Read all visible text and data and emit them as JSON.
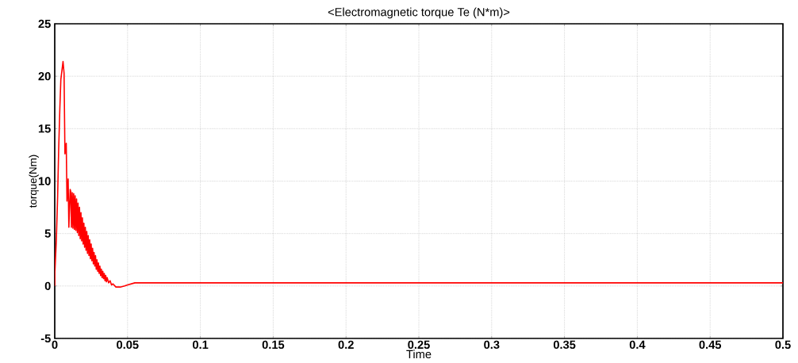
{
  "chart_data": {
    "type": "line",
    "title": "<Electromagnetic torque Te (N*m)>",
    "xlabel": "Time",
    "ylabel": "torque(Nm)",
    "xlim": [
      0,
      0.5
    ],
    "ylim": [
      -5,
      25
    ],
    "xticks": [
      0,
      0.05,
      0.1,
      0.15,
      0.2,
      0.25,
      0.3,
      0.35,
      0.4,
      0.45,
      0.5
    ],
    "yticks": [
      -5,
      0,
      5,
      10,
      15,
      20,
      25
    ],
    "grid": true,
    "line_style": "solid",
    "series": [
      {
        "color": "#ff0000",
        "x": [
          0,
          0.0001,
          0.0011,
          0.002,
          0.0027,
          0.0035,
          0.0042,
          0.0057,
          0.0064,
          0.007,
          0.0079,
          0.0084,
          0.0092,
          0.0097,
          0.0106,
          0.011,
          0.0115,
          0.012,
          0.0125,
          0.013,
          0.0135,
          0.014,
          0.0145,
          0.015,
          0.0155,
          0.016,
          0.0165,
          0.017,
          0.0175,
          0.018,
          0.0185,
          0.019,
          0.0195,
          0.02,
          0.0205,
          0.021,
          0.0215,
          0.022,
          0.0225,
          0.023,
          0.0235,
          0.024,
          0.0245,
          0.025,
          0.0255,
          0.026,
          0.0265,
          0.027,
          0.0275,
          0.028,
          0.0285,
          0.029,
          0.0295,
          0.03,
          0.0305,
          0.031,
          0.0315,
          0.032,
          0.0325,
          0.033,
          0.0335,
          0.034,
          0.0345,
          0.035,
          0.0355,
          0.036,
          0.037,
          0.038,
          0.039,
          0.04,
          0.042,
          0.045,
          0.048,
          0.05,
          0.055,
          0.06,
          0.1,
          0.2,
          0.3,
          0.4,
          0.5
        ],
        "values": [
          0,
          1.3,
          4.4,
          8.6,
          13,
          16.9,
          19.7,
          21.4,
          20.3,
          12.6,
          13.6,
          8.1,
          10.2,
          5.6,
          9.2,
          9.0,
          5.6,
          8.9,
          5.5,
          8.8,
          5.4,
          8.6,
          5.3,
          8.3,
          5.1,
          7.9,
          4.8,
          7.5,
          4.5,
          7.0,
          4.3,
          6.5,
          4.0,
          6.0,
          3.7,
          5.6,
          3.4,
          5.2,
          3.1,
          4.8,
          2.9,
          4.4,
          2.6,
          4.0,
          2.4,
          3.6,
          2.1,
          3.2,
          1.9,
          2.9,
          1.6,
          2.5,
          1.4,
          2.2,
          1.2,
          1.9,
          1.0,
          1.6,
          0.8,
          1.4,
          0.7,
          1.2,
          0.5,
          1.0,
          0.4,
          0.8,
          0.3,
          0.5,
          0.1,
          0.2,
          -0.1,
          -0.1,
          0.0,
          0.1,
          0.3,
          0.3,
          0.3,
          0.3,
          0.3,
          0.3,
          0.3
        ]
      }
    ]
  }
}
